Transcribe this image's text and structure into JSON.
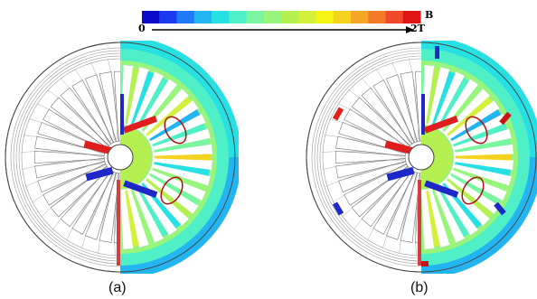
{
  "colorbar": {
    "min_label": "0",
    "max_label": "2T",
    "unit_label": "B",
    "colors": [
      "#0a0ac8",
      "#1a3cf0",
      "#1f7af5",
      "#23b5f2",
      "#27e0e4",
      "#4ff0c8",
      "#7af5a0",
      "#96f57a",
      "#b4f050",
      "#d4f03a",
      "#f5f514",
      "#f5d21e",
      "#f5a828",
      "#f57a28",
      "#f04a28",
      "#e01414"
    ]
  },
  "panels": [
    {
      "id": "a",
      "label": "(a)",
      "side_coils": false
    },
    {
      "id": "b",
      "label": "(b)",
      "side_coils": true
    }
  ],
  "magnet_colors": {
    "north": "#e01e1e",
    "south": "#1e28c8",
    "highlight": "#c81414"
  }
}
